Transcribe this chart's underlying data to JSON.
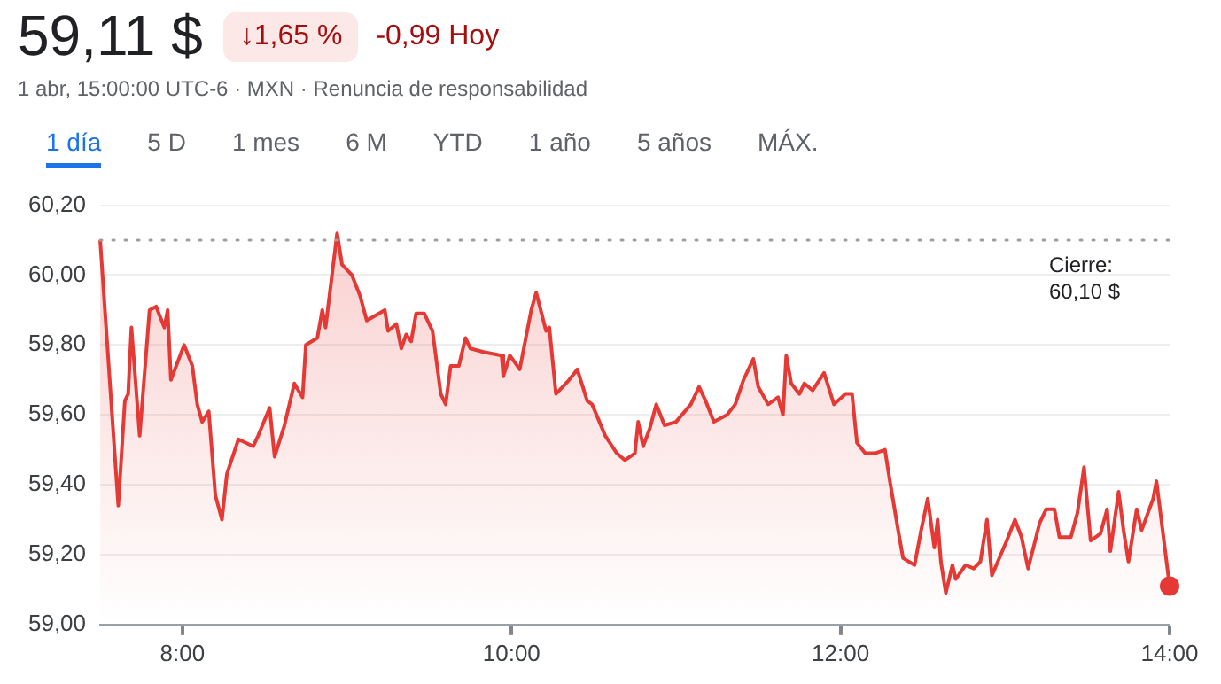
{
  "chart_data": {
    "type": "area",
    "title": "59,11 $",
    "subtitle": "1 abr, 15:00:00 UTC-6 · MXN · Renuncia de responsabilidad",
    "annotations": [
      "↓1,65 %",
      "-0,99 Hoy",
      "1 día",
      "5 D",
      "1 mes",
      "6 M",
      "YTD",
      "1 año",
      "5 años",
      "MÁX."
    ],
    "xlim": [
      7.5,
      14
    ],
    "xticks": [
      {
        "value": 8,
        "label": "8:00"
      },
      {
        "value": 10,
        "label": "10:00"
      },
      {
        "value": 12,
        "label": "12:00"
      },
      {
        "value": 14,
        "label": "14:00"
      }
    ],
    "ylim": [
      59,
      60.2
    ],
    "yticks": [
      {
        "value": 59,
        "label": "59,00"
      },
      {
        "value": 59.2,
        "label": "59,20"
      },
      {
        "value": 59.4,
        "label": "59,40"
      },
      {
        "value": 59.6,
        "label": "59,60"
      },
      {
        "value": 59.8,
        "label": "59,80"
      },
      {
        "value": 60,
        "label": "60,00"
      },
      {
        "value": 60.2,
        "label": "60,20"
      }
    ],
    "grid": "y",
    "legend": false,
    "ref_lines": [
      {
        "axis": "y",
        "value": 60.1,
        "label": "Cierre:\n60,10 $",
        "line_style": "dotted",
        "color": "#9e9e9e"
      }
    ],
    "series": [
      {
        "type": "area",
        "color": "#e53935",
        "marker": "none",
        "x": [
          7.5,
          7.61,
          7.65,
          7.67,
          7.69,
          7.74,
          7.8,
          7.84,
          7.89,
          7.91,
          7.93,
          8.01,
          8.06,
          8.09,
          8.12,
          8.16,
          8.2,
          8.24,
          8.27,
          8.34,
          8.43,
          8.46,
          8.53,
          8.56,
          8.62,
          8.68,
          8.73,
          8.75,
          8.82,
          8.85,
          8.87,
          8.94,
          8.97,
          9.03,
          9.08,
          9.12,
          9.23,
          9.25,
          9.3,
          9.33,
          9.36,
          9.39,
          9.42,
          9.47,
          9.52,
          9.57,
          9.6,
          9.63,
          9.68,
          9.72,
          9.75,
          9.83,
          9.94,
          9.95,
          9.99,
          10.05,
          10.12,
          10.15,
          10.21,
          10.23,
          10.27,
          10.35,
          10.4,
          10.46,
          10.49,
          10.57,
          10.64,
          10.69,
          10.75,
          10.77,
          10.8,
          10.84,
          10.88,
          10.93,
          11,
          11.09,
          11.14,
          11.18,
          11.23,
          11.31,
          11.36,
          11.41,
          11.47,
          11.5,
          11.56,
          11.62,
          11.65,
          11.67,
          11.7,
          11.75,
          11.78,
          11.83,
          11.9,
          11.96,
          12.03,
          12.07,
          12.1,
          12.15,
          12.21,
          12.27,
          12.3,
          12.35,
          12.38,
          12.45,
          12.49,
          12.53,
          12.57,
          12.59,
          12.61,
          12.64,
          12.68,
          12.7,
          12.76,
          12.81,
          12.85,
          12.89,
          12.92,
          13.01,
          13.06,
          13.1,
          13.14,
          13.21,
          13.25,
          13.3,
          13.33,
          13.4,
          13.44,
          13.48,
          13.52,
          13.58,
          13.62,
          13.64,
          13.69,
          13.72,
          13.75,
          13.8,
          13.83,
          13.9,
          13.92,
          14
        ],
        "values": [
          60.1,
          59.34,
          59.64,
          59.66,
          59.85,
          59.54,
          59.9,
          59.91,
          59.85,
          59.9,
          59.7,
          59.8,
          59.74,
          59.63,
          59.58,
          59.61,
          59.37,
          59.3,
          59.43,
          59.53,
          59.51,
          59.54,
          59.62,
          59.48,
          59.57,
          59.69,
          59.65,
          59.8,
          59.82,
          59.9,
          59.85,
          60.12,
          60.03,
          60,
          59.94,
          59.87,
          59.9,
          59.84,
          59.86,
          59.79,
          59.83,
          59.81,
          59.89,
          59.89,
          59.84,
          59.66,
          59.63,
          59.74,
          59.74,
          59.82,
          59.79,
          59.78,
          59.77,
          59.71,
          59.77,
          59.73,
          59.9,
          59.95,
          59.84,
          59.85,
          59.66,
          59.7,
          59.73,
          59.64,
          59.63,
          59.54,
          59.49,
          59.47,
          59.49,
          59.58,
          59.51,
          59.56,
          59.63,
          59.57,
          59.58,
          59.63,
          59.68,
          59.64,
          59.58,
          59.6,
          59.63,
          59.7,
          59.76,
          59.68,
          59.63,
          59.65,
          59.6,
          59.77,
          59.69,
          59.66,
          59.69,
          59.67,
          59.72,
          59.63,
          59.66,
          59.66,
          59.52,
          59.49,
          59.49,
          59.5,
          59.41,
          59.27,
          59.19,
          59.17,
          59.27,
          59.36,
          59.22,
          59.3,
          59.18,
          59.09,
          59.17,
          59.13,
          59.17,
          59.16,
          59.18,
          59.3,
          59.14,
          59.24,
          59.3,
          59.25,
          59.16,
          59.29,
          59.33,
          59.33,
          59.25,
          59.25,
          59.32,
          59.45,
          59.24,
          59.26,
          59.33,
          59.21,
          59.38,
          59.27,
          59.18,
          59.33,
          59.27,
          59.36,
          59.41,
          59.11
        ]
      },
      {
        "type": "scatter",
        "color": "#e53935",
        "marker": "circle",
        "x": [
          14
        ],
        "values": [
          59.11
        ]
      }
    ]
  }
}
